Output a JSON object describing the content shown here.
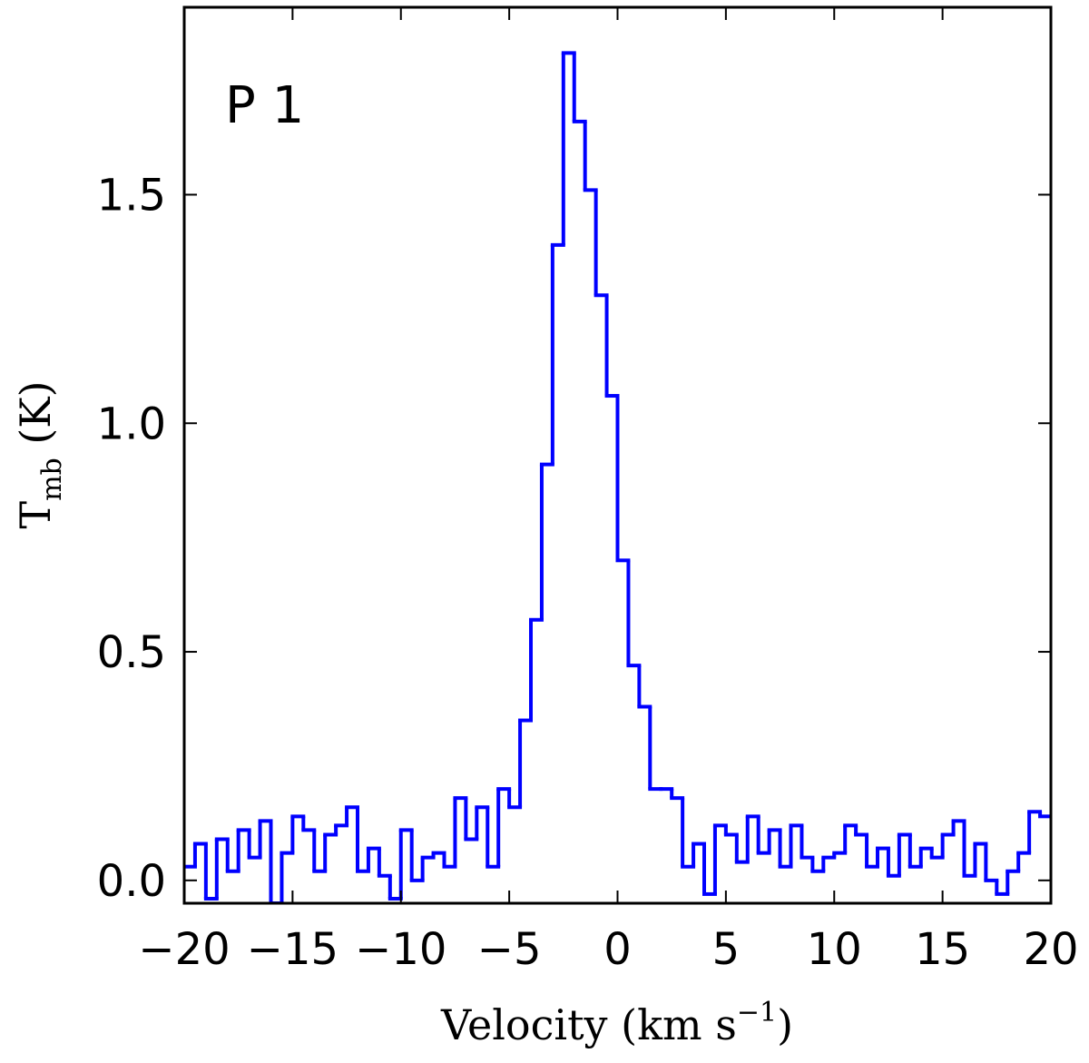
{
  "chart_data": {
    "type": "step",
    "annotation": "P 1",
    "xlabel": [
      "Velocity (km s",
      "−1",
      ")"
    ],
    "ylabel": [
      "T",
      "mb",
      " (K)"
    ],
    "color": "#0000ff",
    "xlim": [
      -20,
      20
    ],
    "ylim": [
      -0.05,
      1.91
    ],
    "xticks": [
      {
        "value": -20,
        "label": "−20"
      },
      {
        "value": -15,
        "label": "−15"
      },
      {
        "value": -10,
        "label": "−10"
      },
      {
        "value": -5,
        "label": "−5"
      },
      0,
      5,
      10,
      15,
      20
    ],
    "yticks": [
      {
        "value": 0,
        "label": "0.0"
      },
      {
        "value": 0.5,
        "label": "0.5"
      },
      {
        "value": 1,
        "label": "1.0"
      },
      {
        "value": 1.5,
        "label": "1.5"
      }
    ],
    "x": [
      -19.75,
      -19.25,
      -18.75,
      -18.25,
      -17.75,
      -17.25,
      -16.75,
      -16.25,
      -15.75,
      -15.25,
      -14.75,
      -14.25,
      -13.75,
      -13.25,
      -12.75,
      -12.25,
      -11.75,
      -11.25,
      -10.75,
      -10.25,
      -9.75,
      -9.25,
      -8.75,
      -8.25,
      -7.75,
      -7.25,
      -6.75,
      -6.25,
      -5.75,
      -5.25,
      -4.75,
      -4.25,
      -3.75,
      -3.25,
      -2.75,
      -2.25,
      -1.75,
      -1.25,
      -0.75,
      -0.25,
      0.25,
      0.75,
      1.25,
      1.75,
      2.25,
      2.75,
      3.25,
      3.75,
      4.25,
      4.75,
      5.25,
      5.75,
      6.25,
      6.75,
      7.25,
      7.75,
      8.25,
      8.75,
      9.25,
      9.75,
      10.25,
      10.75,
      11.25,
      11.75,
      12.25,
      12.75,
      13.25,
      13.75,
      14.25,
      14.75,
      15.25,
      15.75,
      16.25,
      16.75,
      17.25,
      17.75,
      18.25,
      18.75,
      19.25,
      19.75
    ],
    "values": [
      0.03,
      0.08,
      -0.04,
      0.09,
      0.02,
      0.11,
      0.05,
      0.13,
      -0.05,
      0.06,
      0.14,
      0.11,
      0.02,
      0.1,
      0.12,
      0.16,
      0.02,
      0.07,
      0.01,
      -0.04,
      0.11,
      0.0,
      0.05,
      0.06,
      0.03,
      0.18,
      0.09,
      0.16,
      0.03,
      0.2,
      0.16,
      0.35,
      0.57,
      0.91,
      1.39,
      1.81,
      1.66,
      1.51,
      1.28,
      1.06,
      0.7,
      0.47,
      0.38,
      0.2,
      0.2,
      0.18,
      0.03,
      0.08,
      -0.03,
      0.12,
      0.1,
      0.04,
      0.14,
      0.06,
      0.11,
      0.03,
      0.12,
      0.05,
      0.02,
      0.05,
      0.06,
      0.12,
      0.1,
      0.03,
      0.07,
      0.01,
      0.1,
      0.03,
      0.07,
      0.05,
      0.1,
      0.13,
      0.01,
      0.08,
      0.0,
      -0.03,
      0.02,
      0.06,
      0.15,
      0.14
    ]
  }
}
